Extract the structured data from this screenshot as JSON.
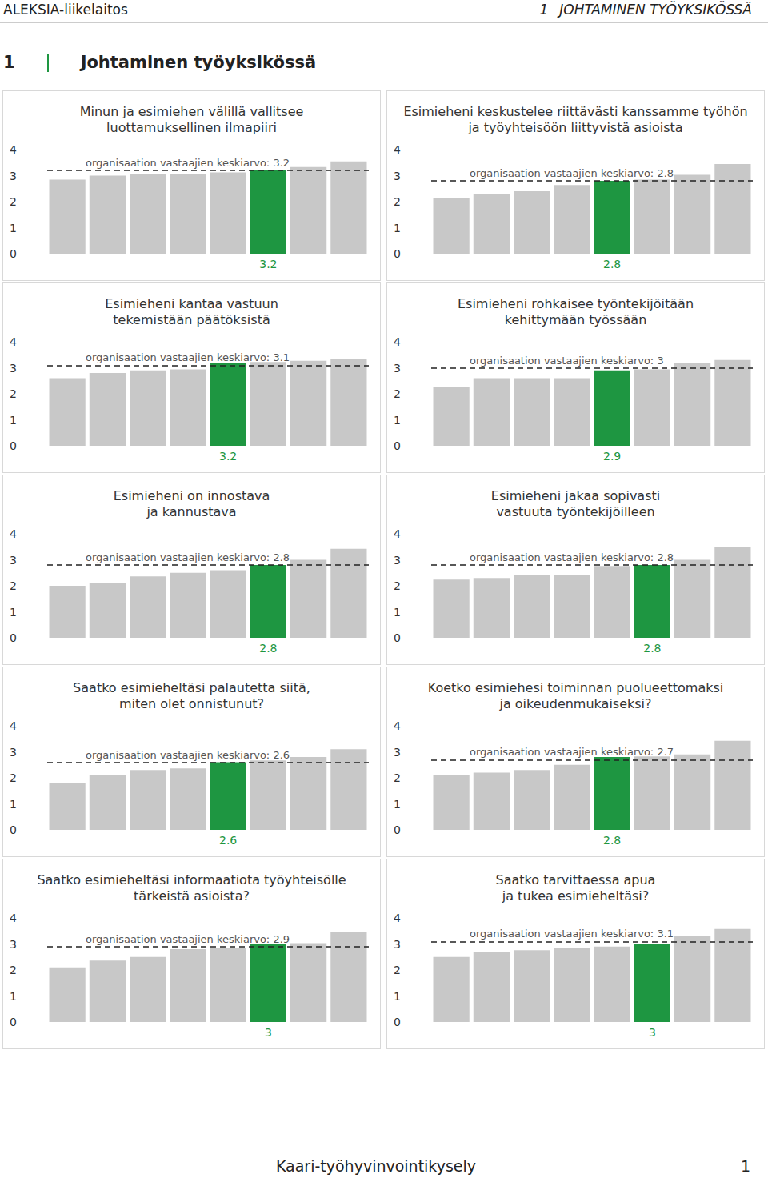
{
  "header": {
    "left": "ALEKSIA-liikelaitos",
    "right_number": "1",
    "right_text": "JOHTAMINEN TYÖYKSIKÖSSÄ"
  },
  "section": {
    "number": "1",
    "title": "Johtaminen työyksikössä"
  },
  "footer": {
    "text": "Kaari-työhyvinvointikysely",
    "page": "1"
  },
  "chart_data": [
    {
      "type": "bar",
      "title": "Minun ja esimiehen välillä vallitsee\nluottamuksellinen ilmapiiri",
      "categories": [
        null,
        null,
        null,
        null,
        null,
        null,
        null,
        null
      ],
      "values": [
        2.85,
        3.0,
        3.06,
        3.06,
        3.12,
        3.2,
        3.33,
        3.55
      ],
      "colors": [
        "#c8c8c8",
        "#c8c8c8",
        "#c8c8c8",
        "#c8c8c8",
        "#c8c8c8",
        "#1e9641",
        "#c8c8c8",
        "#c8c8c8"
      ],
      "value_labels": [
        null,
        null,
        null,
        null,
        null,
        "3.2",
        null,
        null
      ],
      "reference_line": {
        "value": 3.2,
        "label": "organisaation vastaajien keskiarvo: 3.2"
      },
      "ylim": [
        0,
        4
      ],
      "yticks": [
        0,
        1,
        2,
        3,
        4
      ],
      "grid": false,
      "tick_labels": "y"
    },
    {
      "type": "bar",
      "title": "Esimieheni keskustelee riittävästi kanssamme työhön\nja työyhteisöön liittyvistä asioista",
      "categories": [
        null,
        null,
        null,
        null,
        null,
        null,
        null,
        null
      ],
      "values": [
        2.15,
        2.3,
        2.4,
        2.64,
        2.8,
        2.85,
        3.03,
        3.45
      ],
      "colors": [
        "#c8c8c8",
        "#c8c8c8",
        "#c8c8c8",
        "#c8c8c8",
        "#1e9641",
        "#c8c8c8",
        "#c8c8c8",
        "#c8c8c8"
      ],
      "value_labels": [
        null,
        null,
        null,
        null,
        "2.8",
        null,
        null,
        null
      ],
      "reference_line": {
        "value": 2.8,
        "label": "organisaation vastaajien keskiarvo: 2.8"
      },
      "ylim": [
        0,
        4
      ],
      "yticks": [
        0,
        1,
        2,
        3,
        4
      ],
      "grid": false,
      "tick_labels": "y"
    },
    {
      "type": "bar",
      "title": "Esimieheni kantaa vastuun\ntekemistään päätöksistä",
      "categories": [
        null,
        null,
        null,
        null,
        null,
        null,
        null,
        null
      ],
      "values": [
        2.6,
        2.8,
        2.9,
        2.94,
        3.2,
        3.22,
        3.27,
        3.33
      ],
      "colors": [
        "#c8c8c8",
        "#c8c8c8",
        "#c8c8c8",
        "#c8c8c8",
        "#1e9641",
        "#c8c8c8",
        "#c8c8c8",
        "#c8c8c8"
      ],
      "value_labels": [
        null,
        null,
        null,
        null,
        "3.2",
        null,
        null,
        null
      ],
      "reference_line": {
        "value": 3.1,
        "label": "organisaation vastaajien keskiarvo: 3.1"
      },
      "ylim": [
        0,
        4
      ],
      "yticks": [
        0,
        1,
        2,
        3,
        4
      ],
      "grid": false,
      "tick_labels": "y"
    },
    {
      "type": "bar",
      "title": "Esimieheni rohkaisee työntekijöitään\nkehittymään työssään",
      "categories": [
        null,
        null,
        null,
        null,
        null,
        null,
        null,
        null
      ],
      "values": [
        2.27,
        2.6,
        2.6,
        2.6,
        2.9,
        2.94,
        3.2,
        3.3
      ],
      "colors": [
        "#c8c8c8",
        "#c8c8c8",
        "#c8c8c8",
        "#c8c8c8",
        "#1e9641",
        "#c8c8c8",
        "#c8c8c8",
        "#c8c8c8"
      ],
      "value_labels": [
        null,
        null,
        null,
        null,
        "2.9",
        null,
        null,
        null
      ],
      "reference_line": {
        "value": 3,
        "label": "organisaation vastaajien keskiarvo: 3"
      },
      "ylim": [
        0,
        4
      ],
      "yticks": [
        0,
        1,
        2,
        3,
        4
      ],
      "grid": false,
      "tick_labels": "y"
    },
    {
      "type": "bar",
      "title": "Esimieheni on innostava\nja kannustava",
      "categories": [
        null,
        null,
        null,
        null,
        null,
        null,
        null,
        null
      ],
      "values": [
        2.0,
        2.1,
        2.36,
        2.5,
        2.6,
        2.8,
        3.0,
        3.42
      ],
      "colors": [
        "#c8c8c8",
        "#c8c8c8",
        "#c8c8c8",
        "#c8c8c8",
        "#c8c8c8",
        "#1e9641",
        "#c8c8c8",
        "#c8c8c8"
      ],
      "value_labels": [
        null,
        null,
        null,
        null,
        null,
        "2.8",
        null,
        null
      ],
      "reference_line": {
        "value": 2.8,
        "label": "organisaation vastaajien keskiarvo: 2.8"
      },
      "ylim": [
        0,
        4
      ],
      "yticks": [
        0,
        1,
        2,
        3,
        4
      ],
      "grid": false,
      "tick_labels": "y"
    },
    {
      "type": "bar",
      "title": "Esimieheni jakaa sopivasti\nvastuuta työntekijöilleen",
      "categories": [
        null,
        null,
        null,
        null,
        null,
        null,
        null,
        null
      ],
      "values": [
        2.24,
        2.3,
        2.42,
        2.42,
        2.76,
        2.8,
        3.0,
        3.5
      ],
      "colors": [
        "#c8c8c8",
        "#c8c8c8",
        "#c8c8c8",
        "#c8c8c8",
        "#c8c8c8",
        "#1e9641",
        "#c8c8c8",
        "#c8c8c8"
      ],
      "value_labels": [
        null,
        null,
        null,
        null,
        null,
        "2.8",
        null,
        null
      ],
      "reference_line": {
        "value": 2.8,
        "label": "organisaation vastaajien keskiarvo: 2.8"
      },
      "ylim": [
        0,
        4
      ],
      "yticks": [
        0,
        1,
        2,
        3,
        4
      ],
      "grid": false,
      "tick_labels": "y"
    },
    {
      "type": "bar",
      "title": "Saatko esimieheltäsi palautetta siitä,\nmiten olet onnistunut?",
      "categories": [
        null,
        null,
        null,
        null,
        null,
        null,
        null,
        null
      ],
      "values": [
        1.8,
        2.1,
        2.3,
        2.36,
        2.6,
        2.67,
        2.8,
        3.1
      ],
      "colors": [
        "#c8c8c8",
        "#c8c8c8",
        "#c8c8c8",
        "#c8c8c8",
        "#1e9641",
        "#c8c8c8",
        "#c8c8c8",
        "#c8c8c8"
      ],
      "value_labels": [
        null,
        null,
        null,
        null,
        "2.6",
        null,
        null,
        null
      ],
      "reference_line": {
        "value": 2.6,
        "label": "organisaation vastaajien keskiarvo: 2.6"
      },
      "ylim": [
        0,
        4
      ],
      "yticks": [
        0,
        1,
        2,
        3,
        4
      ],
      "grid": false,
      "tick_labels": "y"
    },
    {
      "type": "bar",
      "title": "Koetko esimiehesi toiminnan puolueettomaksi\nja oikeudenmukaiseksi?",
      "categories": [
        null,
        null,
        null,
        null,
        null,
        null,
        null,
        null
      ],
      "values": [
        2.1,
        2.2,
        2.3,
        2.5,
        2.8,
        2.82,
        2.9,
        3.42
      ],
      "colors": [
        "#c8c8c8",
        "#c8c8c8",
        "#c8c8c8",
        "#c8c8c8",
        "#1e9641",
        "#c8c8c8",
        "#c8c8c8",
        "#c8c8c8"
      ],
      "value_labels": [
        null,
        null,
        null,
        null,
        "2.8",
        null,
        null,
        null
      ],
      "reference_line": {
        "value": 2.7,
        "label": "organisaation vastaajien keskiarvo: 2.7"
      },
      "ylim": [
        0,
        4
      ],
      "yticks": [
        0,
        1,
        2,
        3,
        4
      ],
      "grid": false,
      "tick_labels": "y"
    },
    {
      "type": "bar",
      "title": "Saatko esimieheltäsi informaatiota työyhteisölle\ntärkeistä asioista?",
      "categories": [
        null,
        null,
        null,
        null,
        null,
        null,
        null,
        null
      ],
      "values": [
        2.1,
        2.36,
        2.5,
        2.8,
        2.85,
        3,
        3.03,
        3.45
      ],
      "colors": [
        "#c8c8c8",
        "#c8c8c8",
        "#c8c8c8",
        "#c8c8c8",
        "#c8c8c8",
        "#1e9641",
        "#c8c8c8",
        "#c8c8c8"
      ],
      "value_labels": [
        null,
        null,
        null,
        null,
        null,
        "3",
        null,
        null
      ],
      "reference_line": {
        "value": 2.9,
        "label": "organisaation vastaajien keskiarvo: 2.9"
      },
      "ylim": [
        0,
        4
      ],
      "yticks": [
        0,
        1,
        2,
        3,
        4
      ],
      "grid": false,
      "tick_labels": "y"
    },
    {
      "type": "bar",
      "title": "Saatko tarvittaessa apua\nja tukea esimieheltäsi?",
      "categories": [
        null,
        null,
        null,
        null,
        null,
        null,
        null,
        null
      ],
      "values": [
        2.5,
        2.7,
        2.76,
        2.85,
        2.9,
        3,
        3.3,
        3.58
      ],
      "colors": [
        "#c8c8c8",
        "#c8c8c8",
        "#c8c8c8",
        "#c8c8c8",
        "#c8c8c8",
        "#1e9641",
        "#c8c8c8",
        "#c8c8c8"
      ],
      "value_labels": [
        null,
        null,
        null,
        null,
        null,
        "3",
        null,
        null
      ],
      "reference_line": {
        "value": 3.1,
        "label": "organisaation vastaajien keskiarvo: 3.1"
      },
      "ylim": [
        0,
        4
      ],
      "yticks": [
        0,
        1,
        2,
        3,
        4
      ],
      "grid": false,
      "tick_labels": "y"
    }
  ]
}
